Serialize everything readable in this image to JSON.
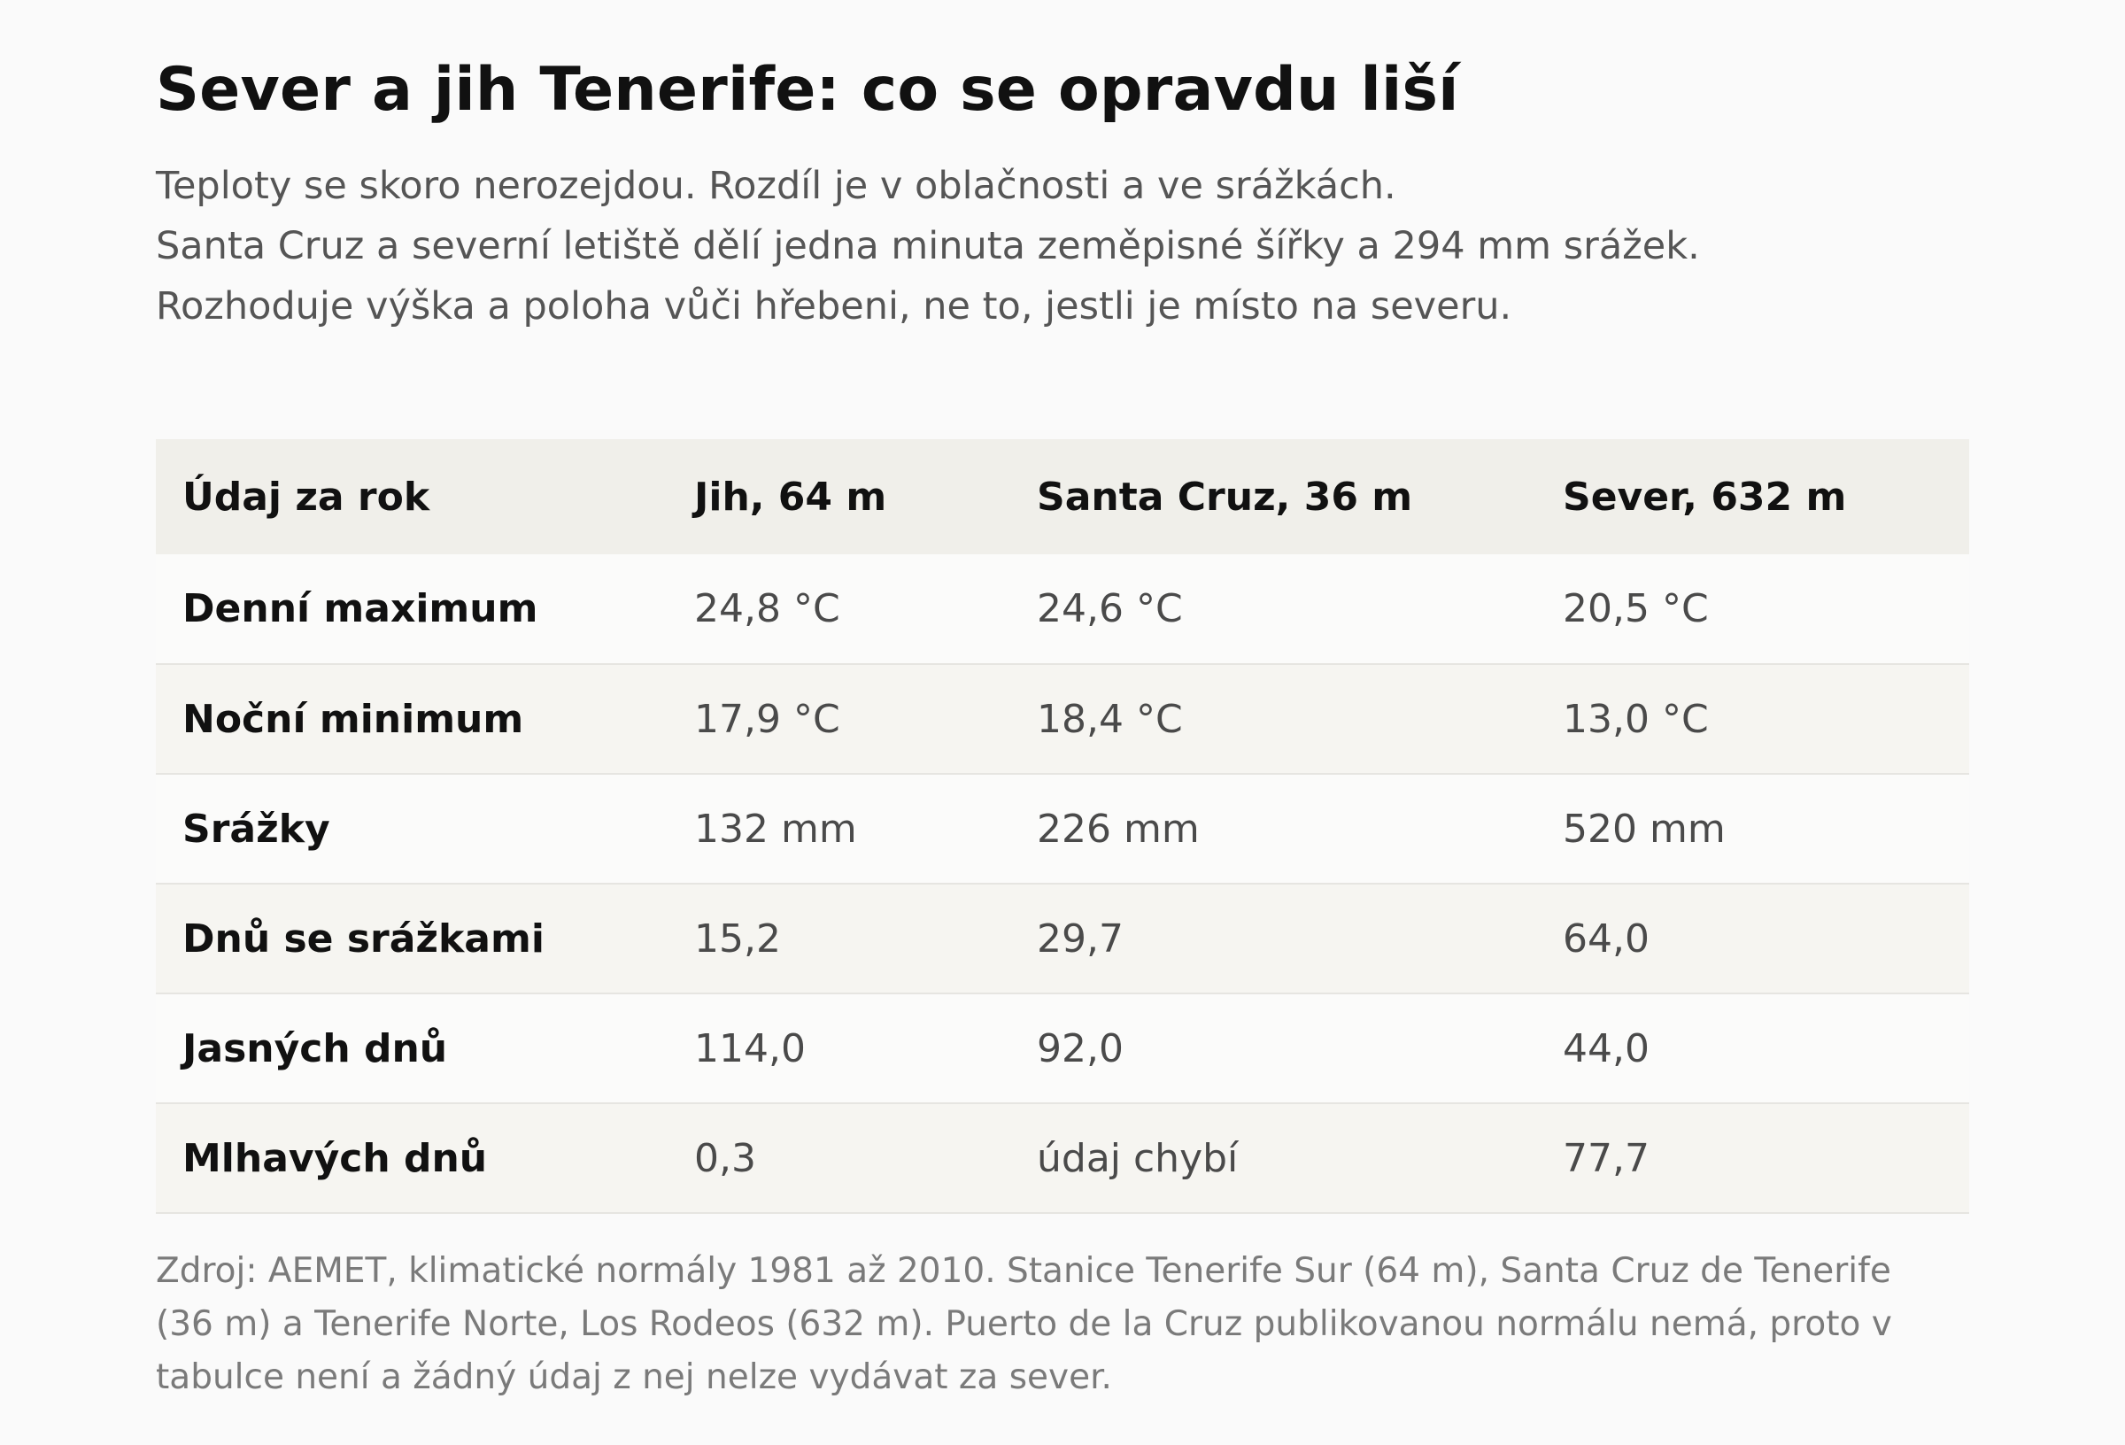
{
  "title": "Sever a jih Tenerife: co se opravdu liší",
  "lede": [
    "Teploty se skoro nerozejdou. Rozdíl je v oblačnosti a ve srážkách.",
    "Santa Cruz a severní letiště dělí jedna minuta zeměpisné šířky a 294 mm srážek.",
    "Rozhoduje výška a poloha vůči hřebeni, ne to, jestli je místo na severu."
  ],
  "table": {
    "headers": [
      "Údaj za rok",
      "Jih, 64 m",
      "Santa Cruz, 36 m",
      "Sever, 632 m"
    ],
    "rows": [
      [
        "Denní maximum",
        "24,8 °C",
        "24,6 °C",
        "20,5 °C"
      ],
      [
        "Noční minimum",
        "17,9 °C",
        "18,4 °C",
        "13,0 °C"
      ],
      [
        "Srážky",
        "132 mm",
        "226 mm",
        "520 mm"
      ],
      [
        "Dnů se srážkami",
        "15,2",
        "29,7",
        "64,0"
      ],
      [
        "Jasných dnů",
        "114,0",
        "92,0",
        "44,0"
      ],
      [
        "Mlhavých dnů",
        "0,3",
        "údaj chybí",
        "77,7"
      ]
    ]
  },
  "source": [
    "Zdroj: AEMET, klimatické normály 1981 až 2010. Stanice Tenerife Sur (64 m), Santa Cruz de Tenerife",
    "(36 m) a Tenerife Norte, Los Rodeos (632 m). Puerto de la Cruz publikovanou normálu nemá, proto v",
    "tabulce není a žádný údaj z nej nelze vydávat za sever."
  ]
}
